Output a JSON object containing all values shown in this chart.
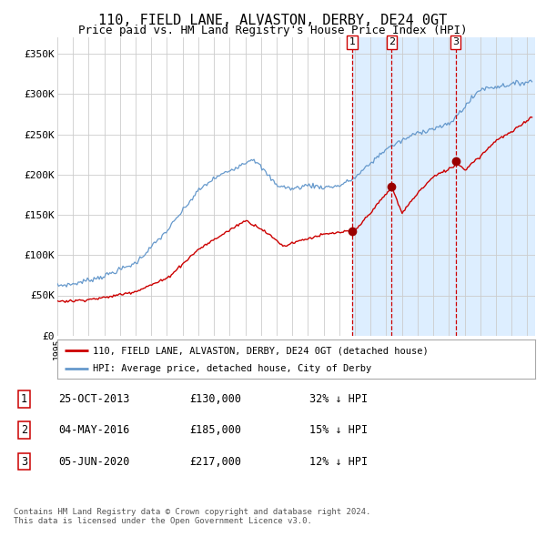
{
  "title": "110, FIELD LANE, ALVASTON, DERBY, DE24 0GT",
  "subtitle": "Price paid vs. HM Land Registry's House Price Index (HPI)",
  "title_fontsize": 11,
  "subtitle_fontsize": 9,
  "background_color": "#ffffff",
  "plot_bg_color": "#ffffff",
  "grid_color": "#cccccc",
  "xmin": 1995.0,
  "xmax": 2025.5,
  "ymin": 0,
  "ymax": 370000,
  "yticks": [
    0,
    50000,
    100000,
    150000,
    200000,
    250000,
    300000,
    350000
  ],
  "ytick_labels": [
    "£0",
    "£50K",
    "£100K",
    "£150K",
    "£200K",
    "£250K",
    "£300K",
    "£350K"
  ],
  "sale_color": "#cc0000",
  "hpi_color": "#6699cc",
  "sale_label": "110, FIELD LANE, ALVASTON, DERBY, DE24 0GT (detached house)",
  "hpi_label": "HPI: Average price, detached house, City of Derby",
  "transactions": [
    {
      "num": 1,
      "date_label": "25-OCT-2013",
      "date_x": 2013.82,
      "price": 130000,
      "pct": "32%",
      "dir": "↓"
    },
    {
      "num": 2,
      "date_label": "04-MAY-2016",
      "date_x": 2016.34,
      "price": 185000,
      "pct": "15%",
      "dir": "↓"
    },
    {
      "num": 3,
      "date_label": "05-JUN-2020",
      "date_x": 2020.43,
      "price": 217000,
      "pct": "12%",
      "dir": "↓"
    }
  ],
  "shaded_region_start": 2013.82,
  "shaded_region_color": "#ddeeff",
  "footer": "Contains HM Land Registry data © Crown copyright and database right 2024.\nThis data is licensed under the Open Government Licence v3.0."
}
